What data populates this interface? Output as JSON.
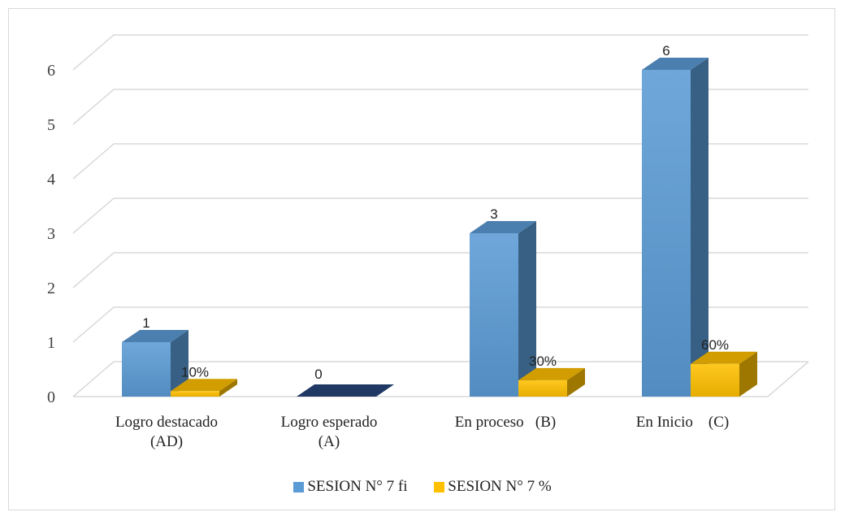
{
  "chart_data": {
    "type": "bar",
    "title": "",
    "xlabel": "",
    "ylabel": "",
    "ylim": [
      0,
      6
    ],
    "yticks": [
      "0",
      "1",
      "2",
      "3",
      "4",
      "5",
      "6"
    ],
    "grid": true,
    "legend_position": "bottom",
    "categories": [
      [
        "Logro destacado",
        "(AD)"
      ],
      [
        "Logro esperado",
        "(A)"
      ],
      [
        "En proceso   (B)"
      ],
      [
        "En Inicio    (C)"
      ]
    ],
    "series": [
      {
        "name": "SESION N° 7 fi",
        "values": [
          1,
          0,
          3,
          6
        ],
        "labels": [
          "1",
          "0",
          "3",
          "6"
        ],
        "color": "#5b9bd5"
      },
      {
        "name": "SESION N° 7 %",
        "values": [
          0.1,
          0,
          0.3,
          0.6
        ],
        "labels": [
          "10%",
          "",
          "30%",
          "60%"
        ],
        "color": "#ffc000"
      }
    ],
    "zero_bar_color": "#1f3864"
  }
}
